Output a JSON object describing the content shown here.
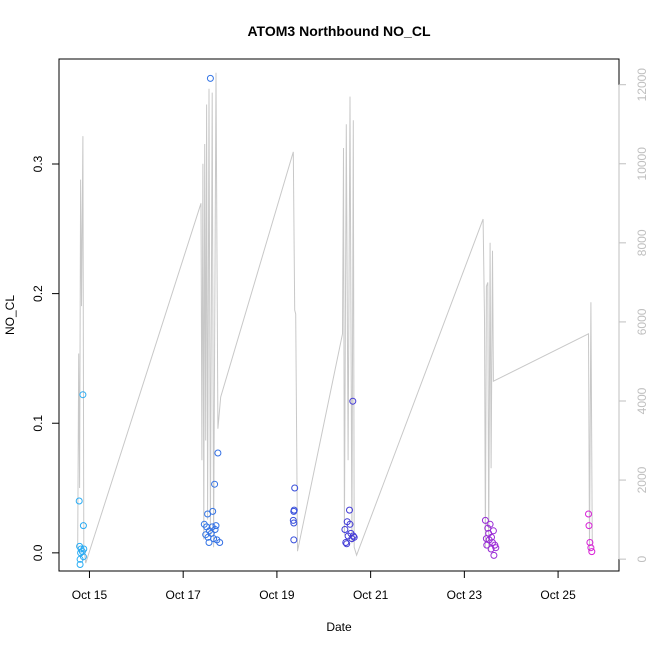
{
  "chart_data": {
    "type": "scatter",
    "title": "ATOM3 Northbound NO_CL",
    "xlabel": "Date",
    "ylabel": "NO_CL",
    "x_ticks": [
      "Oct 15",
      "Oct 17",
      "Oct 19",
      "Oct 21",
      "Oct 23",
      "Oct 25"
    ],
    "x_tick_values": [
      15,
      17,
      19,
      21,
      23,
      25
    ],
    "xlim": [
      14.35,
      26.3
    ],
    "y_ticks": [
      "0.0",
      "0.1",
      "0.2",
      "0.3"
    ],
    "y_tick_values": [
      0,
      0.1,
      0.2,
      0.3
    ],
    "ylim": [
      -0.014,
      0.381
    ],
    "y2_ticks": [
      "0",
      "2000",
      "4000",
      "6000",
      "8000",
      "10000",
      "12000"
    ],
    "y2_tick_values": [
      0,
      2000,
      4000,
      6000,
      8000,
      10000,
      12000
    ],
    "y2lim": [
      -300,
      12650
    ],
    "point_color_start": "#29b6f6",
    "point_color_mid": "#3b3bd6",
    "point_color_end": "#e91ed6",
    "line_color": "#c8c8c8",
    "grid": false,
    "points": [
      {
        "x": 14.78,
        "y": 0.04
      },
      {
        "x": 14.79,
        "y": 0.005
      },
      {
        "x": 14.8,
        "y": -0.005
      },
      {
        "x": 14.81,
        "y": 0.0
      },
      {
        "x": 14.82,
        "y": 0.003
      },
      {
        "x": 14.8,
        "y": -0.009
      },
      {
        "x": 14.86,
        "y": 0.122
      },
      {
        "x": 14.87,
        "y": 0.021
      },
      {
        "x": 14.87,
        "y": -0.003
      },
      {
        "x": 14.88,
        "y": 0.003
      },
      {
        "x": 14.85,
        "y": 0.001
      },
      {
        "x": 17.45,
        "y": 0.022
      },
      {
        "x": 17.48,
        "y": 0.014
      },
      {
        "x": 17.5,
        "y": 0.02
      },
      {
        "x": 17.52,
        "y": 0.03
      },
      {
        "x": 17.53,
        "y": 0.012
      },
      {
        "x": 17.55,
        "y": 0.008
      },
      {
        "x": 17.56,
        "y": 0.017
      },
      {
        "x": 17.58,
        "y": 0.366
      },
      {
        "x": 17.6,
        "y": 0.015
      },
      {
        "x": 17.62,
        "y": 0.02
      },
      {
        "x": 17.63,
        "y": 0.032
      },
      {
        "x": 17.65,
        "y": 0.011
      },
      {
        "x": 17.67,
        "y": 0.053
      },
      {
        "x": 17.68,
        "y": 0.018
      },
      {
        "x": 17.7,
        "y": 0.021
      },
      {
        "x": 17.72,
        "y": 0.01
      },
      {
        "x": 17.74,
        "y": 0.077
      },
      {
        "x": 17.78,
        "y": 0.008
      },
      {
        "x": 19.38,
        "y": 0.05
      },
      {
        "x": 19.37,
        "y": 0.033
      },
      {
        "x": 19.36,
        "y": 0.032
      },
      {
        "x": 19.35,
        "y": 0.025
      },
      {
        "x": 19.36,
        "y": 0.023
      },
      {
        "x": 19.36,
        "y": 0.01
      },
      {
        "x": 20.45,
        "y": 0.018
      },
      {
        "x": 20.47,
        "y": 0.008
      },
      {
        "x": 20.49,
        "y": 0.007
      },
      {
        "x": 20.5,
        "y": 0.024
      },
      {
        "x": 20.52,
        "y": 0.013
      },
      {
        "x": 20.55,
        "y": 0.033
      },
      {
        "x": 20.56,
        "y": 0.022
      },
      {
        "x": 20.58,
        "y": 0.015
      },
      {
        "x": 20.6,
        "y": 0.011
      },
      {
        "x": 20.62,
        "y": 0.117
      },
      {
        "x": 20.63,
        "y": 0.013
      },
      {
        "x": 20.65,
        "y": 0.012
      },
      {
        "x": 23.45,
        "y": 0.025
      },
      {
        "x": 23.47,
        "y": 0.011
      },
      {
        "x": 23.48,
        "y": 0.006
      },
      {
        "x": 23.5,
        "y": 0.019
      },
      {
        "x": 23.52,
        "y": 0.015
      },
      {
        "x": 23.53,
        "y": 0.01
      },
      {
        "x": 23.55,
        "y": 0.022
      },
      {
        "x": 23.57,
        "y": 0.003
      },
      {
        "x": 23.58,
        "y": 0.012
      },
      {
        "x": 23.6,
        "y": 0.008
      },
      {
        "x": 23.62,
        "y": 0.017
      },
      {
        "x": 23.63,
        "y": -0.002
      },
      {
        "x": 23.65,
        "y": 0.006
      },
      {
        "x": 23.67,
        "y": 0.004
      },
      {
        "x": 25.65,
        "y": 0.03
      },
      {
        "x": 25.66,
        "y": 0.021
      },
      {
        "x": 25.68,
        "y": 0.008
      },
      {
        "x": 25.7,
        "y": 0.004
      },
      {
        "x": 25.72,
        "y": 0.001
      }
    ],
    "line_series": [
      [
        14.75,
        280
      ],
      [
        14.77,
        5200
      ],
      [
        14.79,
        1800
      ],
      [
        14.81,
        9600
      ],
      [
        14.83,
        6400
      ],
      [
        14.86,
        10700
      ],
      [
        14.88,
        300
      ],
      [
        14.92,
        -100
      ],
      [
        17.38,
        9000
      ],
      [
        17.4,
        2500
      ],
      [
        17.42,
        10000
      ],
      [
        17.44,
        500
      ],
      [
        17.46,
        10500
      ],
      [
        17.48,
        3000
      ],
      [
        17.5,
        11500
      ],
      [
        17.52,
        1000
      ],
      [
        17.55,
        11900
      ],
      [
        17.58,
        600
      ],
      [
        17.62,
        11800
      ],
      [
        17.65,
        300
      ],
      [
        17.7,
        12300
      ],
      [
        17.74,
        3300
      ],
      [
        17.8,
        4100
      ],
      [
        19.35,
        10300
      ],
      [
        19.38,
        6300
      ],
      [
        19.4,
        6200
      ],
      [
        19.44,
        200
      ],
      [
        20.4,
        5700
      ],
      [
        20.42,
        10400
      ],
      [
        20.44,
        600
      ],
      [
        20.48,
        11000
      ],
      [
        20.52,
        2500
      ],
      [
        20.56,
        11700
      ],
      [
        20.6,
        400
      ],
      [
        20.63,
        11100
      ],
      [
        20.65,
        300
      ],
      [
        20.7,
        100
      ],
      [
        23.4,
        8600
      ],
      [
        23.43,
        6100
      ],
      [
        23.45,
        300
      ],
      [
        23.47,
        6900
      ],
      [
        23.5,
        7000
      ],
      [
        23.52,
        200
      ],
      [
        23.55,
        8000
      ],
      [
        23.57,
        2300
      ],
      [
        23.6,
        7800
      ],
      [
        23.62,
        4500
      ],
      [
        25.65,
        5700
      ],
      [
        25.67,
        200
      ],
      [
        25.7,
        6500
      ],
      [
        25.73,
        300
      ]
    ]
  }
}
